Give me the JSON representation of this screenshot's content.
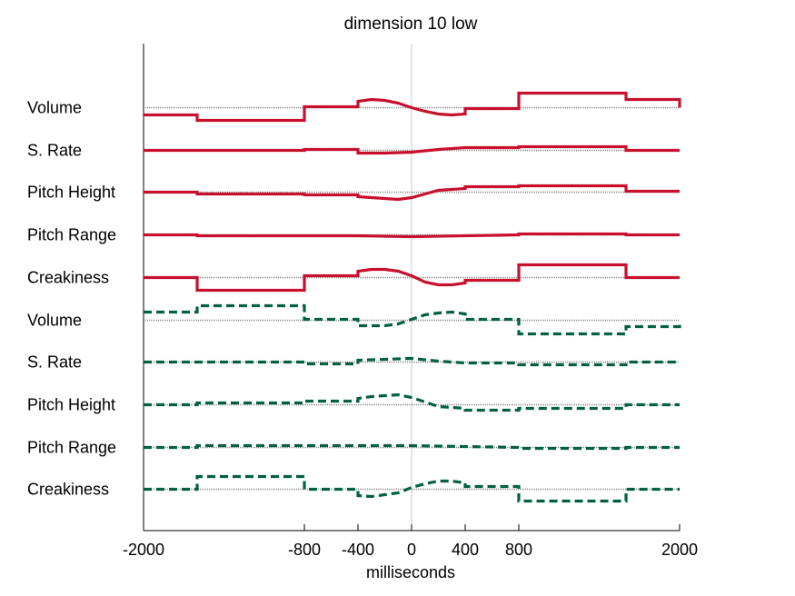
{
  "chart_data": {
    "type": "line",
    "title": "dimension 10 low",
    "xlabel": "milliseconds",
    "xlim": [
      -2000,
      2000
    ],
    "xticks": [
      -2000,
      -800,
      -400,
      0,
      400,
      800,
      2000
    ],
    "xtick_labels": [
      "-2000",
      "-800",
      "-400",
      "0",
      "400",
      "800",
      "2000"
    ],
    "zero_line": true,
    "colors": {
      "red": "#c8102e",
      "green": "#006040",
      "baseline": "#888888",
      "zero": "#c8c8c8"
    },
    "panels": [
      {
        "name": "red-solid",
        "style": "solid",
        "color": "#c8102e",
        "rows": [
          {
            "label": "Volume",
            "points": [
              [
                -2000,
                -8
              ],
              [
                -1600,
                -8
              ],
              [
                -1600,
                -14
              ],
              [
                -800,
                -14
              ],
              [
                -800,
                1
              ],
              [
                -400,
                1
              ],
              [
                -400,
                7
              ],
              [
                -300,
                9
              ],
              [
                -200,
                8
              ],
              [
                -100,
                5
              ],
              [
                0,
                0
              ],
              [
                100,
                -4
              ],
              [
                200,
                -7
              ],
              [
                300,
                -8
              ],
              [
                400,
                -7
              ],
              [
                400,
                -1
              ],
              [
                800,
                -1
              ],
              [
                800,
                16
              ],
              [
                1600,
                16
              ],
              [
                1600,
                9
              ],
              [
                2000,
                9
              ],
              [
                2000,
                0
              ]
            ]
          },
          {
            "label": "S. Rate",
            "points": [
              [
                -2000,
                0
              ],
              [
                -800,
                0
              ],
              [
                -800,
                1
              ],
              [
                -400,
                1
              ],
              [
                -400,
                -3
              ],
              [
                -200,
                -3
              ],
              [
                0,
                -2
              ],
              [
                200,
                1
              ],
              [
                400,
                3
              ],
              [
                800,
                3
              ],
              [
                800,
                4
              ],
              [
                1600,
                4
              ],
              [
                1600,
                0
              ],
              [
                2000,
                0
              ]
            ]
          },
          {
            "label": "Pitch Height",
            "points": [
              [
                -2000,
                0
              ],
              [
                -1600,
                0
              ],
              [
                -1600,
                -2
              ],
              [
                -800,
                -2
              ],
              [
                -800,
                -3
              ],
              [
                -400,
                -3
              ],
              [
                -400,
                -5
              ],
              [
                -300,
                -6
              ],
              [
                -100,
                -8
              ],
              [
                0,
                -6
              ],
              [
                100,
                -2
              ],
              [
                200,
                2
              ],
              [
                400,
                4
              ],
              [
                400,
                6
              ],
              [
                800,
                6
              ],
              [
                800,
                7
              ],
              [
                1600,
                7
              ],
              [
                1600,
                1
              ],
              [
                2000,
                1
              ]
            ]
          },
          {
            "label": "Pitch Range",
            "points": [
              [
                -2000,
                0
              ],
              [
                -1600,
                0
              ],
              [
                -1600,
                -1
              ],
              [
                -400,
                -1
              ],
              [
                0,
                -2
              ],
              [
                400,
                -1
              ],
              [
                800,
                0
              ],
              [
                800,
                1
              ],
              [
                1600,
                1
              ],
              [
                1600,
                0
              ],
              [
                2000,
                0
              ]
            ]
          },
          {
            "label": "Creakiness",
            "points": [
              [
                -2000,
                0
              ],
              [
                -1600,
                0
              ],
              [
                -1600,
                -14
              ],
              [
                -800,
                -14
              ],
              [
                -800,
                2
              ],
              [
                -400,
                2
              ],
              [
                -400,
                7
              ],
              [
                -300,
                9
              ],
              [
                -200,
                9
              ],
              [
                -100,
                7
              ],
              [
                0,
                2
              ],
              [
                100,
                -5
              ],
              [
                200,
                -8
              ],
              [
                300,
                -8
              ],
              [
                400,
                -6
              ],
              [
                400,
                -3
              ],
              [
                800,
                -3
              ],
              [
                800,
                14
              ],
              [
                1600,
                14
              ],
              [
                1600,
                0
              ],
              [
                2000,
                0
              ]
            ]
          }
        ]
      },
      {
        "name": "green-dashed",
        "style": "dashed",
        "color": "#006040",
        "rows": [
          {
            "label": "Volume",
            "points": [
              [
                -2000,
                9
              ],
              [
                -1600,
                9
              ],
              [
                -1600,
                16
              ],
              [
                -800,
                16
              ],
              [
                -800,
                1
              ],
              [
                -400,
                1
              ],
              [
                -400,
                -6
              ],
              [
                -200,
                -6
              ],
              [
                -100,
                -4
              ],
              [
                0,
                1
              ],
              [
                100,
                6
              ],
              [
                200,
                8
              ],
              [
                300,
                9
              ],
              [
                400,
                7
              ],
              [
                400,
                1
              ],
              [
                800,
                1
              ],
              [
                800,
                -15
              ],
              [
                1600,
                -15
              ],
              [
                1600,
                -7
              ],
              [
                2000,
                -7
              ],
              [
                2000,
                0
              ]
            ]
          },
          {
            "label": "S. Rate",
            "points": [
              [
                -2000,
                0
              ],
              [
                -800,
                0
              ],
              [
                -800,
                -2
              ],
              [
                -400,
                -2
              ],
              [
                -400,
                2
              ],
              [
                -200,
                3
              ],
              [
                0,
                4
              ],
              [
                200,
                1
              ],
              [
                400,
                -1
              ],
              [
                800,
                -1
              ],
              [
                800,
                -3
              ],
              [
                1600,
                -3
              ],
              [
                1600,
                0
              ],
              [
                2000,
                0
              ]
            ]
          },
          {
            "label": "Pitch Height",
            "points": [
              [
                -2000,
                0
              ],
              [
                -1600,
                0
              ],
              [
                -1600,
                2
              ],
              [
                -800,
                2
              ],
              [
                -800,
                4
              ],
              [
                -400,
                4
              ],
              [
                -400,
                7
              ],
              [
                -300,
                9
              ],
              [
                -100,
                11
              ],
              [
                0,
                8
              ],
              [
                100,
                3
              ],
              [
                200,
                -2
              ],
              [
                400,
                -4
              ],
              [
                400,
                -6
              ],
              [
                800,
                -6
              ],
              [
                800,
                -4
              ],
              [
                1600,
                -4
              ],
              [
                1600,
                0
              ],
              [
                2000,
                0
              ]
            ]
          },
          {
            "label": "Pitch Range",
            "points": [
              [
                -2000,
                0
              ],
              [
                -1600,
                0
              ],
              [
                -1600,
                2
              ],
              [
                -400,
                2
              ],
              [
                0,
                2
              ],
              [
                400,
                1
              ],
              [
                800,
                0
              ],
              [
                800,
                -1
              ],
              [
                1600,
                -1
              ],
              [
                1600,
                0
              ],
              [
                2000,
                0
              ]
            ]
          },
          {
            "label": "Creakiness",
            "points": [
              [
                -2000,
                0
              ],
              [
                -1600,
                0
              ],
              [
                -1600,
                14
              ],
              [
                -800,
                14
              ],
              [
                -800,
                0
              ],
              [
                -400,
                0
              ],
              [
                -400,
                -7
              ],
              [
                -300,
                -8
              ],
              [
                -200,
                -6
              ],
              [
                -100,
                -4
              ],
              [
                0,
                2
              ],
              [
                100,
                6
              ],
              [
                200,
                9
              ],
              [
                300,
                9
              ],
              [
                400,
                7
              ],
              [
                400,
                3
              ],
              [
                800,
                3
              ],
              [
                800,
                -13
              ],
              [
                1600,
                -13
              ],
              [
                1600,
                0
              ],
              [
                2000,
                0
              ]
            ]
          }
        ]
      }
    ]
  }
}
